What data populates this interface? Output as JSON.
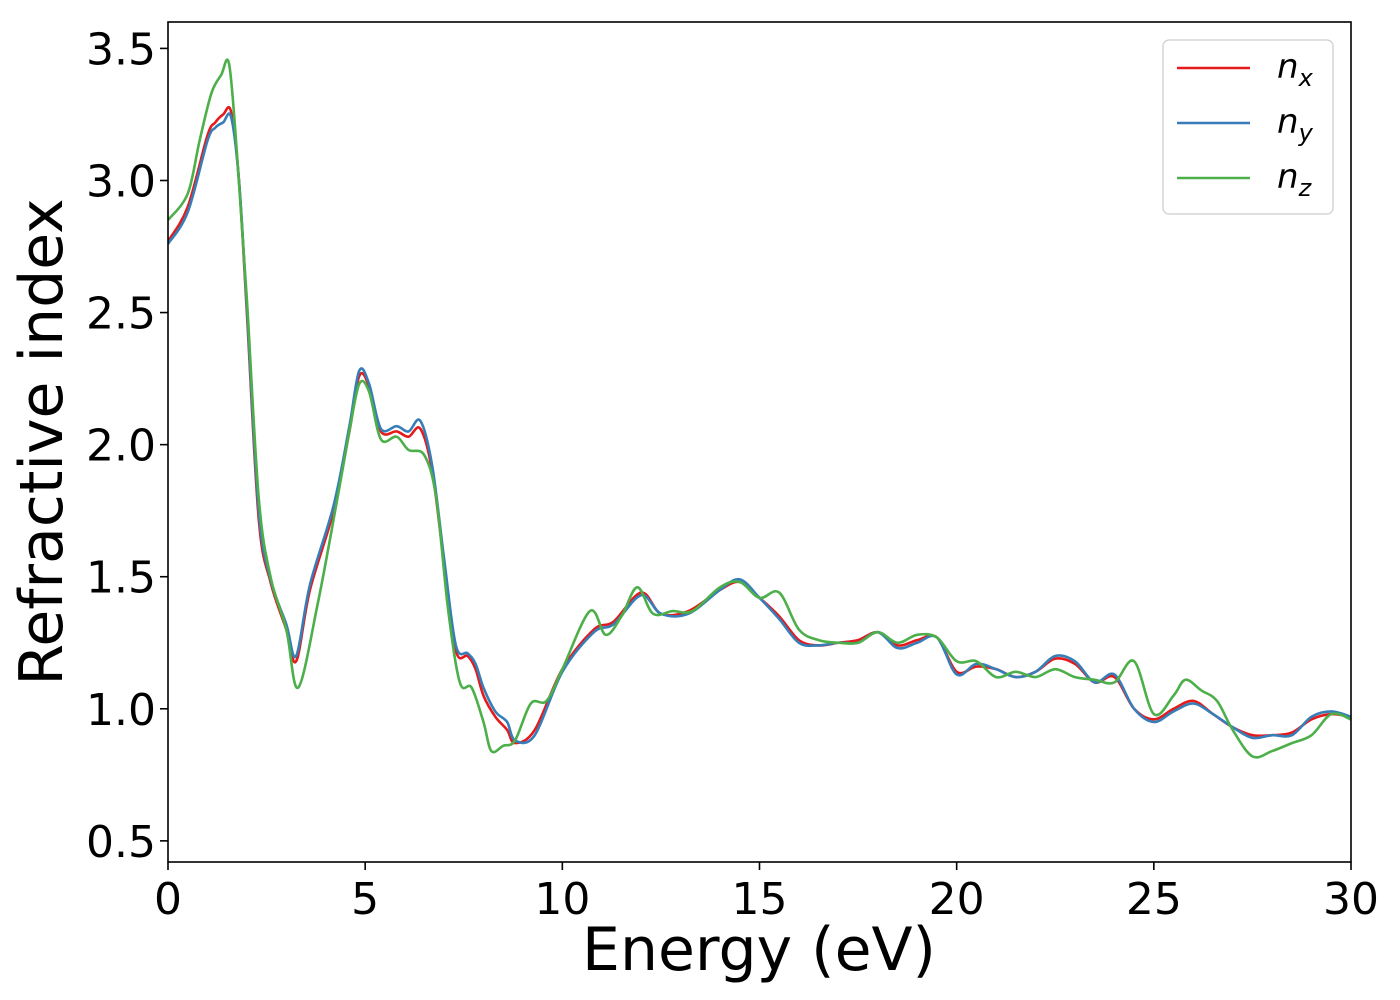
{
  "chart_data": {
    "type": "line",
    "title": "",
    "xlabel": "Energy (eV)",
    "ylabel": "Refractive index",
    "xlim": [
      0,
      30
    ],
    "ylim": [
      0.42,
      3.6
    ],
    "xticks": [
      0,
      5,
      10,
      15,
      20,
      25,
      30
    ],
    "xtick_labels": [
      "0",
      "5",
      "10",
      "15",
      "20",
      "25",
      "30"
    ],
    "yticks": [
      0.5,
      1.0,
      1.5,
      2.0,
      2.5,
      3.0,
      3.5
    ],
    "ytick_labels": [
      "0.5",
      "1.0",
      "1.5",
      "2.0",
      "2.5",
      "3.0",
      "3.5"
    ],
    "grid": false,
    "legend_position": "top-right",
    "series": [
      {
        "name": "n_x",
        "label_main": "n",
        "label_sub": "x",
        "color": "#e41a1c",
        "x": [
          0,
          0.5,
          1.0,
          1.2,
          1.4,
          1.6,
          1.8,
          2.0,
          2.3,
          2.6,
          3.0,
          3.25,
          3.6,
          4.2,
          4.6,
          4.85,
          5.1,
          5.4,
          5.8,
          6.1,
          6.4,
          6.7,
          7.0,
          7.3,
          7.6,
          7.8,
          8.0,
          8.3,
          8.6,
          8.8,
          9.3,
          10.0,
          10.8,
          11.3,
          12.0,
          12.5,
          13.2,
          14.0,
          14.5,
          15.0,
          15.5,
          16.0,
          16.5,
          17.0,
          17.5,
          18.0,
          18.5,
          19.0,
          19.5,
          20.0,
          20.5,
          21.0,
          21.5,
          22.0,
          22.5,
          23.0,
          23.5,
          24.0,
          24.5,
          25.0,
          25.5,
          26.0,
          26.5,
          27.0,
          27.5,
          28.0,
          28.5,
          29.0,
          29.5,
          30.0
        ],
        "values": [
          2.77,
          2.9,
          3.17,
          3.22,
          3.25,
          3.26,
          3.0,
          2.5,
          1.72,
          1.48,
          1.3,
          1.18,
          1.45,
          1.75,
          2.05,
          2.26,
          2.22,
          2.05,
          2.05,
          2.03,
          2.06,
          1.9,
          1.55,
          1.22,
          1.2,
          1.15,
          1.05,
          0.97,
          0.92,
          0.87,
          0.92,
          1.15,
          1.3,
          1.33,
          1.44,
          1.36,
          1.37,
          1.45,
          1.48,
          1.42,
          1.35,
          1.26,
          1.24,
          1.25,
          1.26,
          1.29,
          1.24,
          1.26,
          1.27,
          1.14,
          1.16,
          1.15,
          1.12,
          1.14,
          1.19,
          1.17,
          1.1,
          1.12,
          1.0,
          0.96,
          1.0,
          1.03,
          0.98,
          0.93,
          0.9,
          0.9,
          0.91,
          0.96,
          0.98,
          0.97
        ]
      },
      {
        "name": "n_y",
        "label_main": "n",
        "label_sub": "y",
        "color": "#377eb8",
        "x": [
          0,
          0.5,
          1.0,
          1.2,
          1.4,
          1.6,
          1.8,
          2.0,
          2.3,
          2.6,
          3.0,
          3.25,
          3.6,
          4.2,
          4.6,
          4.85,
          5.1,
          5.4,
          5.8,
          6.1,
          6.4,
          6.7,
          7.0,
          7.3,
          7.6,
          7.8,
          8.0,
          8.3,
          8.6,
          8.8,
          9.3,
          10.0,
          10.8,
          11.3,
          12.0,
          12.5,
          13.2,
          14.0,
          14.5,
          15.0,
          15.5,
          16.0,
          16.5,
          17.0,
          17.5,
          18.0,
          18.5,
          19.0,
          19.5,
          20.0,
          20.5,
          21.0,
          21.5,
          22.0,
          22.5,
          23.0,
          23.5,
          24.0,
          24.5,
          25.0,
          25.5,
          26.0,
          26.5,
          27.0,
          27.5,
          28.0,
          28.5,
          29.0,
          29.5,
          30.0
        ],
        "values": [
          2.76,
          2.88,
          3.15,
          3.2,
          3.22,
          3.24,
          3.0,
          2.52,
          1.75,
          1.49,
          1.32,
          1.2,
          1.47,
          1.77,
          2.07,
          2.28,
          2.23,
          2.06,
          2.07,
          2.05,
          2.09,
          1.92,
          1.57,
          1.24,
          1.21,
          1.17,
          1.08,
          0.99,
          0.95,
          0.88,
          0.9,
          1.14,
          1.29,
          1.32,
          1.43,
          1.36,
          1.36,
          1.45,
          1.49,
          1.42,
          1.34,
          1.25,
          1.24,
          1.25,
          1.25,
          1.29,
          1.23,
          1.25,
          1.27,
          1.13,
          1.17,
          1.15,
          1.12,
          1.14,
          1.2,
          1.18,
          1.1,
          1.13,
          1.0,
          0.95,
          0.99,
          1.02,
          0.98,
          0.93,
          0.89,
          0.9,
          0.9,
          0.97,
          0.99,
          0.97
        ]
      },
      {
        "name": "n_z",
        "label_main": "n",
        "label_sub": "z",
        "color": "#4daf4a",
        "x": [
          0,
          0.5,
          0.8,
          1.1,
          1.35,
          1.55,
          1.75,
          2.0,
          2.3,
          2.6,
          3.0,
          3.3,
          3.8,
          4.3,
          4.6,
          4.85,
          5.1,
          5.4,
          5.8,
          6.1,
          6.5,
          6.8,
          7.1,
          7.4,
          7.7,
          8.0,
          8.2,
          8.5,
          8.8,
          9.2,
          9.6,
          10.0,
          10.7,
          11.1,
          11.5,
          11.9,
          12.3,
          12.8,
          13.3,
          14.0,
          14.5,
          15.0,
          15.5,
          16.0,
          16.5,
          17.0,
          17.5,
          18.0,
          18.5,
          19.0,
          19.5,
          20.0,
          20.5,
          21.0,
          21.5,
          22.0,
          22.5,
          23.0,
          23.5,
          24.0,
          24.5,
          25.0,
          25.5,
          25.8,
          26.2,
          26.6,
          27.0,
          27.5,
          28.0,
          28.5,
          29.0,
          29.5,
          30.0
        ],
        "values": [
          2.85,
          2.95,
          3.15,
          3.33,
          3.4,
          3.44,
          3.1,
          2.55,
          1.8,
          1.5,
          1.3,
          1.08,
          1.4,
          1.8,
          2.05,
          2.23,
          2.2,
          2.02,
          2.03,
          1.98,
          1.96,
          1.8,
          1.38,
          1.1,
          1.08,
          0.95,
          0.84,
          0.86,
          0.88,
          1.02,
          1.03,
          1.15,
          1.37,
          1.28,
          1.35,
          1.46,
          1.36,
          1.37,
          1.37,
          1.46,
          1.48,
          1.42,
          1.44,
          1.3,
          1.26,
          1.25,
          1.25,
          1.29,
          1.25,
          1.28,
          1.27,
          1.18,
          1.18,
          1.12,
          1.14,
          1.12,
          1.15,
          1.12,
          1.11,
          1.1,
          1.18,
          0.98,
          1.05,
          1.11,
          1.07,
          1.03,
          0.92,
          0.82,
          0.84,
          0.87,
          0.9,
          0.98,
          0.96
        ]
      }
    ]
  }
}
